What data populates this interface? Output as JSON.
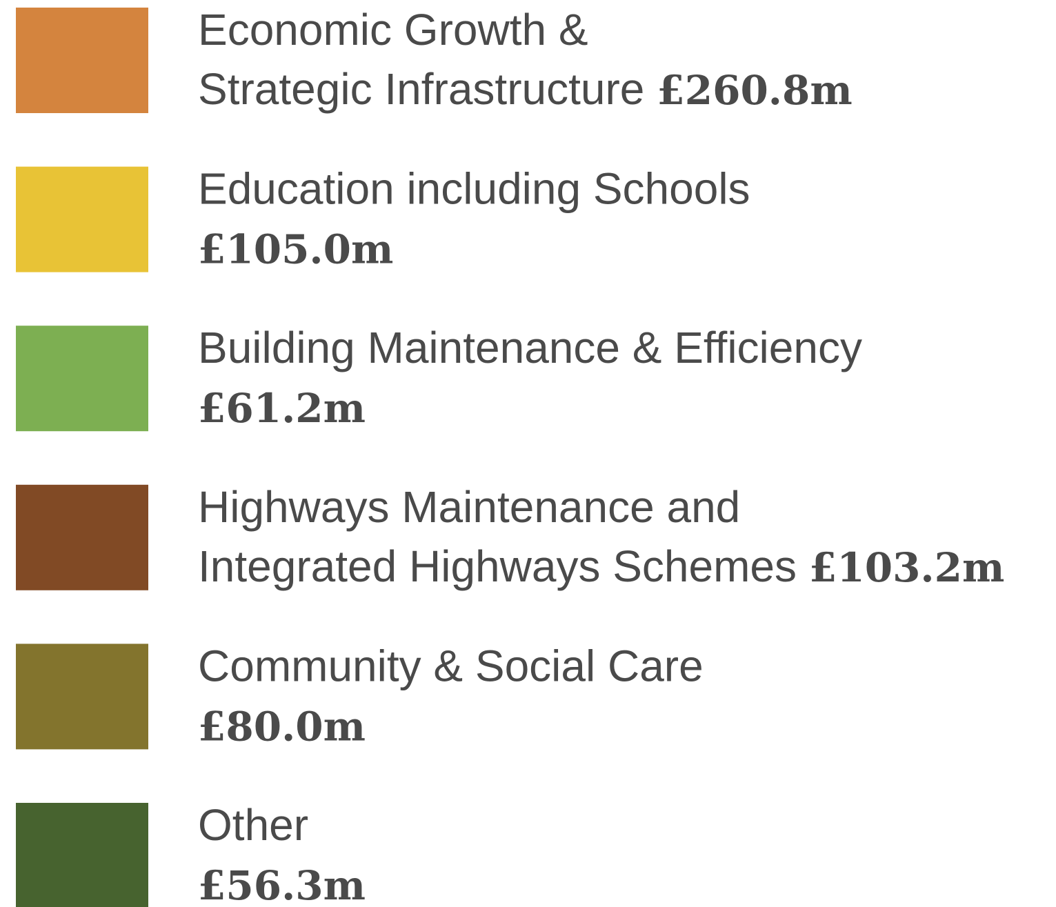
{
  "legend": {
    "items": [
      {
        "label_lines": [
          "Economic Growth &",
          "Strategic Infrastructure"
        ],
        "amount": "£260.8m",
        "color": "#d4843e"
      },
      {
        "label_lines": [
          "Education including Schools"
        ],
        "amount": "£105.0m",
        "color": "#e8c336"
      },
      {
        "label_lines": [
          "Building Maintenance & Efficiency"
        ],
        "amount": "£61.2m",
        "color": "#7daf52"
      },
      {
        "label_lines": [
          "Highways Maintenance and",
          "Integrated Highways Schemes"
        ],
        "amount": "£103.2m",
        "color": "#814a25"
      },
      {
        "label_lines": [
          "Community & Social Care"
        ],
        "amount": "£80.0m",
        "color": "#83742d"
      },
      {
        "label_lines": [
          "Other"
        ],
        "amount": "£56.3m",
        "color": "#47632f"
      }
    ]
  }
}
